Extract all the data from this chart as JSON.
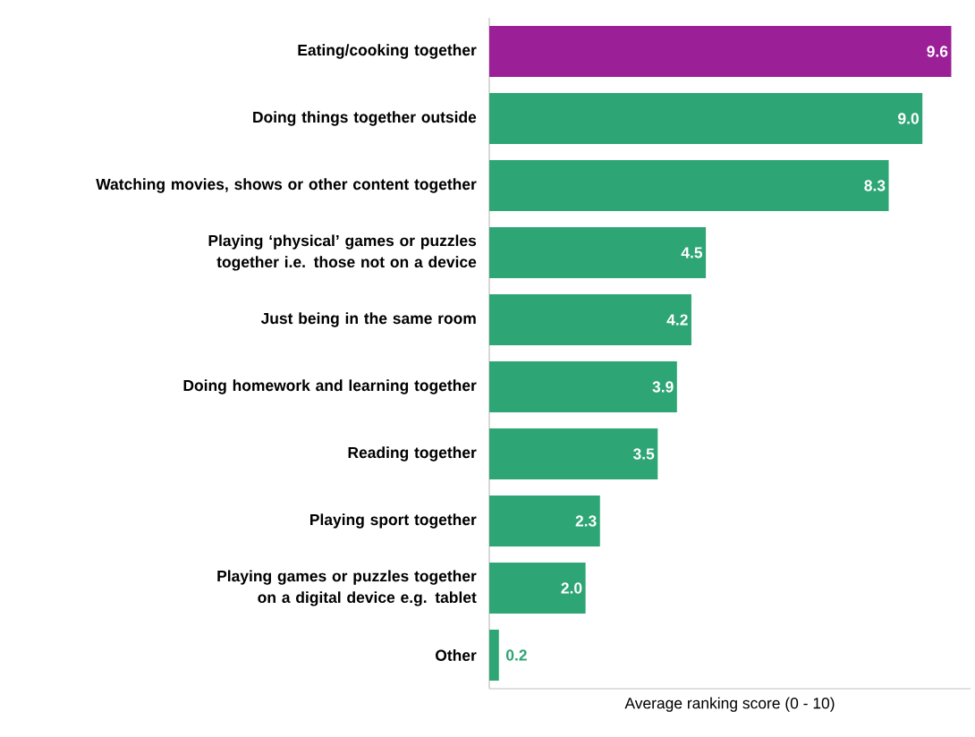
{
  "chart_data": {
    "type": "bar",
    "orientation": "horizontal",
    "xlabel": "Average ranking score (0 - 10)",
    "categories": [
      "Eating/cooking together",
      "Doing things together outside",
      "Watching movies, shows or other content together",
      "Playing ‘physical’ games or puzzles together i.e. those not on a device",
      "Just being in the same room",
      "Doing homework and learning together",
      "Reading together",
      "Playing sport together",
      "Playing games or puzzles together on a digital device e.g. tablet",
      "Other"
    ],
    "values": [
      9.6,
      9.0,
      8.3,
      4.5,
      4.2,
      3.9,
      3.5,
      2.3,
      2.0,
      0.2
    ],
    "value_labels": [
      "9.6",
      "9.0",
      "8.3",
      "4.5",
      "4.2",
      "3.9",
      "3.5",
      "2.3",
      "2.0",
      "0.2"
    ],
    "colors": [
      "#9b1f96",
      "#2ea574",
      "#2ea574",
      "#2ea574",
      "#2ea574",
      "#2ea574",
      "#2ea574",
      "#2ea574",
      "#2ea574",
      "#2ea574"
    ],
    "xlim": [
      0,
      10
    ],
    "grid": false,
    "legend": false,
    "tick_labels": "y"
  }
}
